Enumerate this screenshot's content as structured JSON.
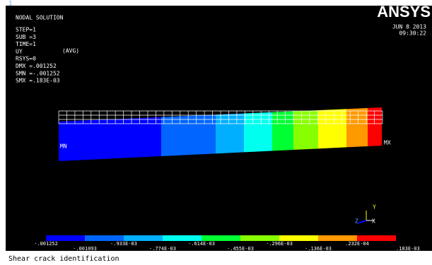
{
  "window_number": "1",
  "header": {
    "title": "NODAL SOLUTION",
    "lines": [
      "STEP=1",
      "SUB =3",
      "TIME=1",
      "UY",
      "RSYS=0",
      "DMX =.001252",
      "SMN =-.001252",
      "SMX =.183E-03"
    ],
    "avg": "(AVG)"
  },
  "logo": "ANSYS",
  "date": "JUN  8 2013",
  "time": "09:30:22",
  "plot": {
    "min_label": "MN",
    "max_label": "MX"
  },
  "triad": {
    "y": "Y",
    "z": "Z",
    "x": "X"
  },
  "legend": {
    "colors": [
      "#0000ff",
      "#0066ff",
      "#00b0ff",
      "#00ffee",
      "#00ff33",
      "#88ff00",
      "#ffff00",
      "#ff9900",
      "#ff0000"
    ],
    "labels": [
      "-.001252",
      "-.001093",
      "-.933E-03",
      "-.774E-03",
      "-.614E-03",
      "-.455E-03",
      "-.296E-03",
      "-.136E-03",
      ".232E-04",
      ".183E-03"
    ]
  },
  "status_bar": "Shear crack identification"
}
